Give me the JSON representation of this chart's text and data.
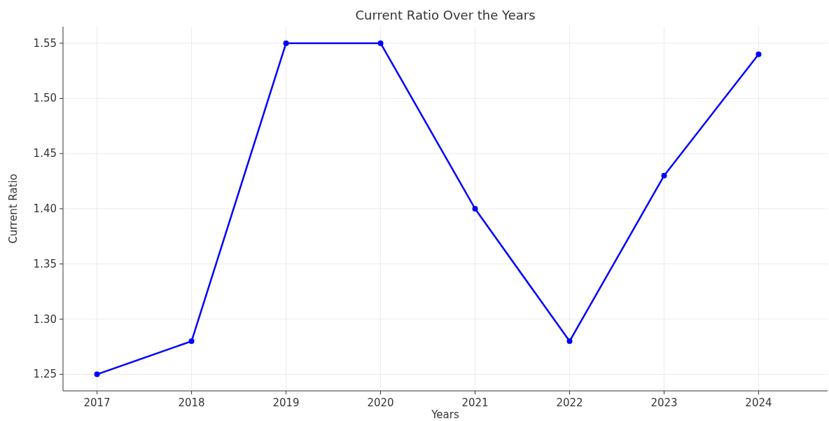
{
  "chart_data": {
    "type": "line",
    "title": "Current Ratio Over the Years",
    "xlabel": "Years",
    "ylabel": "Current Ratio",
    "x": [
      2017,
      2018,
      2019,
      2020,
      2021,
      2022,
      2023,
      2024
    ],
    "series": [
      {
        "color": "#0000ff",
        "values": [
          1.25,
          1.28,
          1.55,
          1.55,
          1.4,
          1.28,
          1.43,
          1.54
        ]
      }
    ],
    "xlim": [
      2016.64,
      2024.73
    ],
    "xticks": [
      2017,
      2018,
      2019,
      2020,
      2021,
      2022,
      2023,
      2024
    ],
    "ylim": [
      1.235,
      1.565
    ],
    "yticks": [
      {
        "value": 1.25,
        "label": "1.25"
      },
      {
        "value": 1.3,
        "label": "1.30"
      },
      {
        "value": 1.35,
        "label": "1.35"
      },
      {
        "value": 1.4,
        "label": "1.40"
      },
      {
        "value": 1.45,
        "label": "1.45"
      },
      {
        "value": 1.5,
        "label": "1.50"
      },
      {
        "value": 1.55,
        "label": "1.55"
      }
    ],
    "grid": true,
    "marker": "circle",
    "line_style": "solid"
  }
}
